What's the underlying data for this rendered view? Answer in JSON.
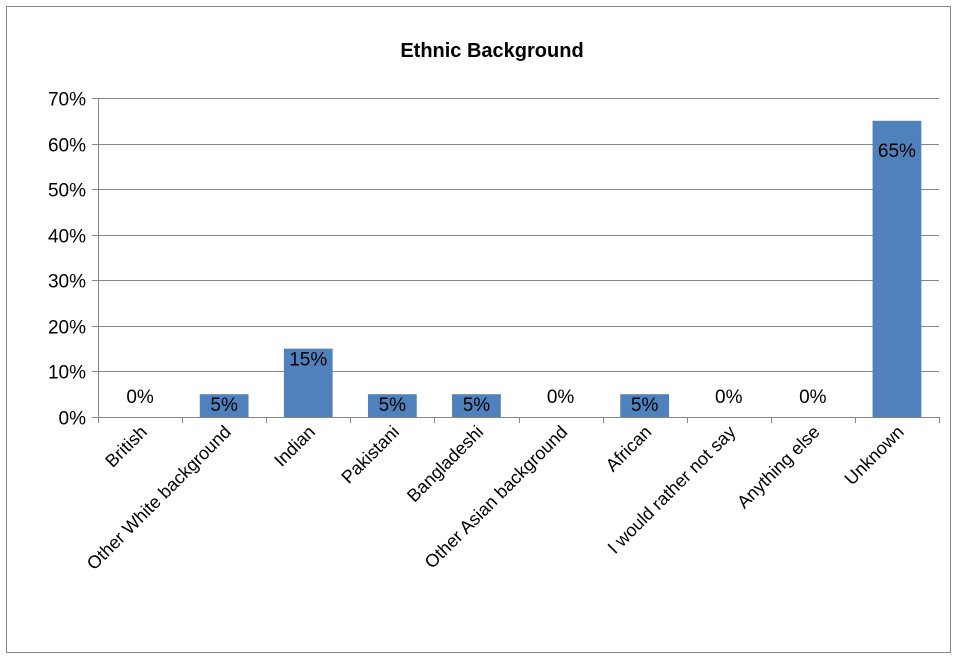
{
  "chart_data": {
    "type": "bar",
    "title": "Ethnic Background",
    "categories": [
      "British",
      "Other White background",
      "Indian",
      "Pakistani",
      "Bangladeshi",
      "Other Asian background",
      "African",
      "I would rather not say",
      "Anything else",
      "Unknown"
    ],
    "values": [
      0,
      5,
      15,
      5,
      5,
      0,
      5,
      0,
      0,
      65
    ],
    "data_labels": [
      "0%",
      "5%",
      "15%",
      "5%",
      "5%",
      "0%",
      "5%",
      "0%",
      "0%",
      "65%"
    ],
    "y_ticks": [
      0,
      10,
      20,
      30,
      40,
      50,
      60,
      70
    ],
    "y_tick_labels": [
      "0%",
      "10%",
      "20%",
      "30%",
      "40%",
      "50%",
      "60%",
      "70%"
    ],
    "ylim": [
      0,
      70
    ],
    "xlabel": "",
    "ylabel": "",
    "grid": true,
    "legend": "none",
    "bar_color": "#4f81bd",
    "grid_color": "#868686"
  }
}
